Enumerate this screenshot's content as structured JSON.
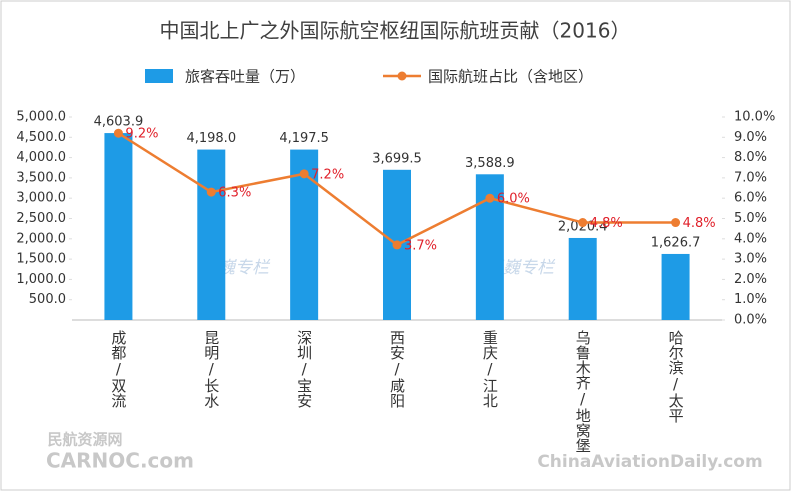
{
  "chart_data": {
    "type": "bar-line",
    "title": "中国北上广之外国际航空枢纽国际航班贡献（2016）",
    "categories": [
      "成都/双流",
      "昆明/长水",
      "深圳/宝安",
      "西安/咸阳",
      "重庆/江北",
      "乌鲁木齐/地窝堡",
      "哈尔滨/太平"
    ],
    "series": [
      {
        "name": "旅客吞吐量（万）",
        "type": "bar",
        "color": "#1e9be6",
        "values": [
          4603.9,
          4198.0,
          4197.5,
          3699.5,
          3588.9,
          2020.4,
          1626.7
        ],
        "value_labels": [
          "4,603.9",
          "4,198.0",
          "4,197.5",
          "3,699.5",
          "3,588.9",
          "2,020.4",
          "1,626.7"
        ]
      },
      {
        "name": "国际航班占比（含地区）",
        "type": "line",
        "axis": "y2",
        "color": "#ed7d31",
        "values": [
          9.2,
          6.3,
          7.2,
          3.7,
          6.0,
          4.8,
          4.8
        ],
        "value_labels": [
          "9.2%",
          "6.3%",
          "7.2%",
          "3.7%",
          "6.0%",
          "4.8%",
          "4.8%"
        ]
      }
    ],
    "ylim": [
      0,
      5000
    ],
    "yticks": [
      {
        "value": 500,
        "label": "500.0"
      },
      {
        "value": 1000,
        "label": "1,000.0"
      },
      {
        "value": 1500,
        "label": "1,500.0"
      },
      {
        "value": 2000,
        "label": "2,000.0"
      },
      {
        "value": 2500,
        "label": "2,500.0"
      },
      {
        "value": 3000,
        "label": "3,000.0"
      },
      {
        "value": 3500,
        "label": "3,500.0"
      },
      {
        "value": 4000,
        "label": "4,000.0"
      },
      {
        "value": 4500,
        "label": "4,500.0"
      },
      {
        "value": 5000,
        "label": "5,000.0"
      }
    ],
    "y2lim": [
      0,
      10
    ],
    "y2ticks": [
      {
        "value": 0,
        "label": "0.0%"
      },
      {
        "value": 1,
        "label": "1.0%"
      },
      {
        "value": 2,
        "label": "2.0%"
      },
      {
        "value": 3,
        "label": "3.0%"
      },
      {
        "value": 4,
        "label": "4.0%"
      },
      {
        "value": 5,
        "label": "5.0%"
      },
      {
        "value": 6,
        "label": "6.0%"
      },
      {
        "value": 7,
        "label": "7.0%"
      },
      {
        "value": 8,
        "label": "8.0%"
      },
      {
        "value": 9,
        "label": "9.0%"
      },
      {
        "value": 10,
        "label": "10.0%"
      }
    ],
    "legend": "top",
    "annotations": [
      "赵巍专栏",
      "赵巍专栏",
      "民航资源网",
      "CARNOC.com",
      "ChinaAviationDaily.com"
    ]
  }
}
